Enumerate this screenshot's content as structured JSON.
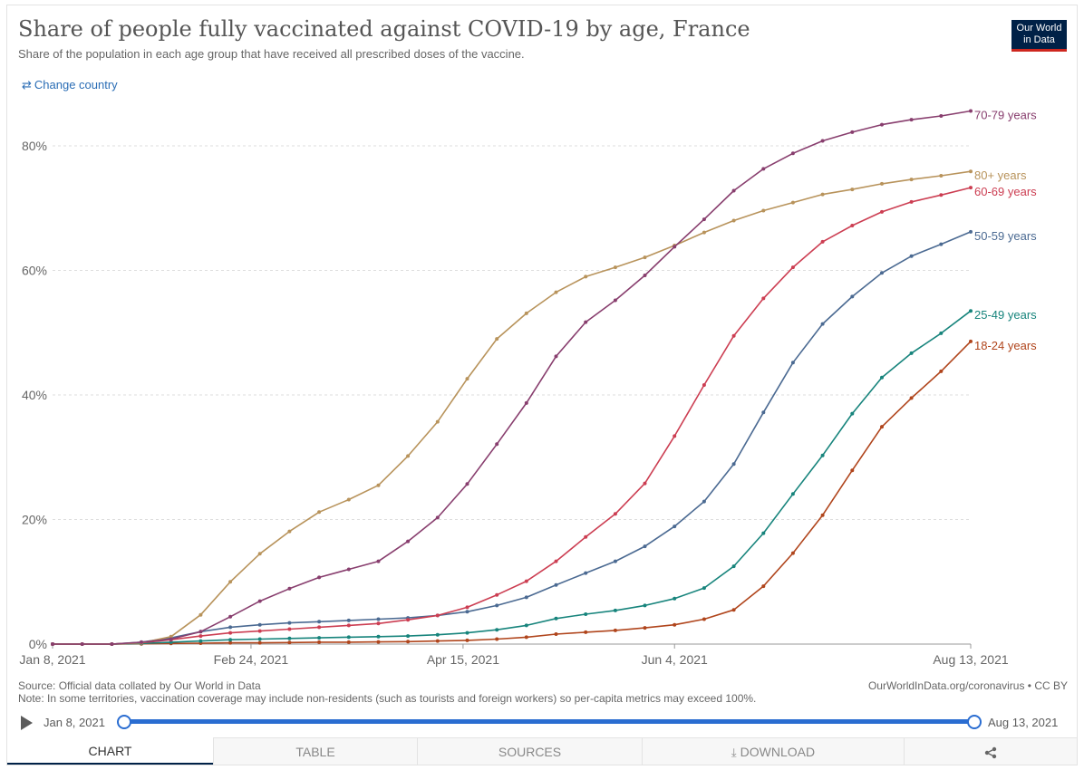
{
  "header": {
    "title": "Share of people fully vaccinated against COVID-19 by age, France",
    "subtitle": "Share of the population in each age group that have received all prescribed doses of the vaccine.",
    "logo_line1": "Our World",
    "logo_line2": "in Data",
    "change_country": "Change country"
  },
  "chart_data": {
    "type": "line",
    "y_ticks": [
      "0%",
      "20%",
      "40%",
      "60%",
      "80%"
    ],
    "ylim": [
      0,
      85
    ],
    "x_ticks": [
      {
        "label": "Jan 8, 2021",
        "i": 0
      },
      {
        "label": "Feb 24, 2021",
        "i": 6.7
      },
      {
        "label": "Apr 15, 2021",
        "i": 13.86
      },
      {
        "label": "Jun 4, 2021",
        "i": 21
      },
      {
        "label": "Aug 13, 2021",
        "i": 31
      }
    ],
    "x_range": [
      "Jan 8, 2021",
      "Aug 13, 2021"
    ],
    "x_step": "weekly",
    "grid": true,
    "series": [
      {
        "name": "70-79 years",
        "color": "#883e6e",
        "values": [
          0,
          0,
          0,
          0.3,
          0.8,
          2.0,
          4.4,
          6.9,
          8.9,
          10.7,
          12.0,
          13.3,
          16.5,
          20.3,
          25.7,
          32.1,
          38.7,
          46.2,
          51.7,
          55.2,
          59.2,
          63.8,
          68.2,
          72.8,
          76.3,
          78.8,
          80.8,
          82.2,
          83.4,
          84.2,
          84.8,
          85.6
        ]
      },
      {
        "name": "80+ years",
        "color": "#b8935b",
        "values": [
          0,
          0,
          0,
          0.2,
          1.2,
          4.7,
          10.0,
          14.5,
          18.1,
          21.2,
          23.2,
          25.5,
          30.2,
          35.7,
          42.6,
          49.0,
          53.1,
          56.5,
          59.0,
          60.5,
          62.1,
          64.0,
          66.1,
          68.0,
          69.6,
          70.9,
          72.2,
          73.0,
          73.9,
          74.6,
          75.2,
          75.9
        ]
      },
      {
        "name": "60-69 years",
        "color": "#cc3e52",
        "values": [
          0,
          0,
          0,
          0.2,
          0.7,
          1.3,
          1.8,
          2.1,
          2.4,
          2.7,
          3.0,
          3.3,
          3.9,
          4.6,
          5.9,
          7.9,
          10.1,
          13.3,
          17.2,
          20.9,
          25.8,
          33.4,
          41.6,
          49.5,
          55.5,
          60.5,
          64.6,
          67.2,
          69.4,
          71.0,
          72.1,
          73.3
        ]
      },
      {
        "name": "50-59 years",
        "color": "#4b6a92",
        "values": [
          0,
          0,
          0,
          0.3,
          1.0,
          2.0,
          2.7,
          3.1,
          3.4,
          3.6,
          3.8,
          4.0,
          4.2,
          4.6,
          5.2,
          6.2,
          7.5,
          9.5,
          11.4,
          13.3,
          15.7,
          18.9,
          22.9,
          28.9,
          37.2,
          45.2,
          51.4,
          55.8,
          59.6,
          62.3,
          64.2,
          66.2
        ]
      },
      {
        "name": "25-49 years",
        "color": "#17847c",
        "values": [
          0,
          0,
          0,
          0.1,
          0.3,
          0.5,
          0.7,
          0.8,
          0.9,
          1.0,
          1.1,
          1.2,
          1.3,
          1.5,
          1.8,
          2.3,
          3.0,
          4.1,
          4.8,
          5.4,
          6.2,
          7.3,
          9.0,
          12.5,
          17.8,
          24.1,
          30.3,
          37.0,
          42.8,
          46.7,
          49.9,
          53.5
        ]
      },
      {
        "name": "18-24 years",
        "color": "#b0451c",
        "values": [
          0,
          0,
          0,
          0.05,
          0.1,
          0.15,
          0.2,
          0.2,
          0.25,
          0.3,
          0.3,
          0.35,
          0.4,
          0.5,
          0.6,
          0.8,
          1.1,
          1.6,
          1.9,
          2.2,
          2.6,
          3.1,
          4.0,
          5.5,
          9.3,
          14.6,
          20.7,
          27.9,
          34.9,
          39.5,
          43.8,
          48.6
        ]
      }
    ]
  },
  "footer": {
    "source": "Source: Official data collated by Our World in Data",
    "note": "Note: In some territories, vaccination coverage may include non-residents (such as tourists and foreign workers) so per-capita metrics may exceed 100%.",
    "credit": "OurWorldInData.org/coronavirus • CC BY"
  },
  "timeline": {
    "start": "Jan 8, 2021",
    "end": "Aug 13, 2021"
  },
  "tabs": [
    "CHART",
    "TABLE",
    "SOURCES",
    "DOWNLOAD"
  ],
  "share_icon": "share-icon",
  "download_icon": "download-icon"
}
